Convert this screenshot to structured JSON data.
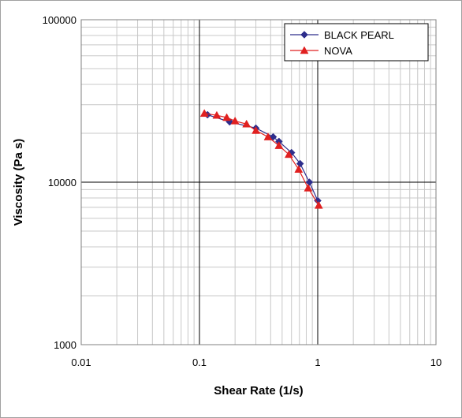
{
  "chart_data": {
    "type": "line",
    "title": "",
    "xlabel": "Shear Rate (1/s)",
    "ylabel": "Viscosity (Pa s)",
    "x_scale": "log",
    "y_scale": "log",
    "xlim": [
      0.01,
      10
    ],
    "ylim": [
      1000,
      100000
    ],
    "x_ticks": [
      {
        "value": 0.01,
        "label": "0.01"
      },
      {
        "value": 0.1,
        "label": "0.1"
      },
      {
        "value": 1,
        "label": "1"
      },
      {
        "value": 10,
        "label": "10"
      }
    ],
    "y_ticks": [
      {
        "value": 1000,
        "label": "1000"
      },
      {
        "value": 10000,
        "label": "10000"
      },
      {
        "value": 100000,
        "label": "100000"
      }
    ],
    "grid": true,
    "legend_position": "top-right",
    "series": [
      {
        "name": "BLACK PEARL",
        "color": "#2E2E8C",
        "marker": "diamond",
        "points": [
          {
            "x": 0.117,
            "y": 26000
          },
          {
            "x": 0.18,
            "y": 23500
          },
          {
            "x": 0.3,
            "y": 21500
          },
          {
            "x": 0.42,
            "y": 19000
          },
          {
            "x": 0.47,
            "y": 17800
          },
          {
            "x": 0.6,
            "y": 15200
          },
          {
            "x": 0.71,
            "y": 13000
          },
          {
            "x": 0.85,
            "y": 10000
          },
          {
            "x": 1.0,
            "y": 7700
          }
        ]
      },
      {
        "name": "NOVA",
        "color": "#E02020",
        "marker": "triangle",
        "points": [
          {
            "x": 0.11,
            "y": 26500
          },
          {
            "x": 0.14,
            "y": 25800
          },
          {
            "x": 0.17,
            "y": 25000
          },
          {
            "x": 0.2,
            "y": 23800
          },
          {
            "x": 0.25,
            "y": 22800
          },
          {
            "x": 0.3,
            "y": 20800
          },
          {
            "x": 0.38,
            "y": 19000
          },
          {
            "x": 0.47,
            "y": 16800
          },
          {
            "x": 0.57,
            "y": 14800
          },
          {
            "x": 0.69,
            "y": 12000
          },
          {
            "x": 0.83,
            "y": 9200
          },
          {
            "x": 1.02,
            "y": 7200
          }
        ]
      }
    ]
  }
}
